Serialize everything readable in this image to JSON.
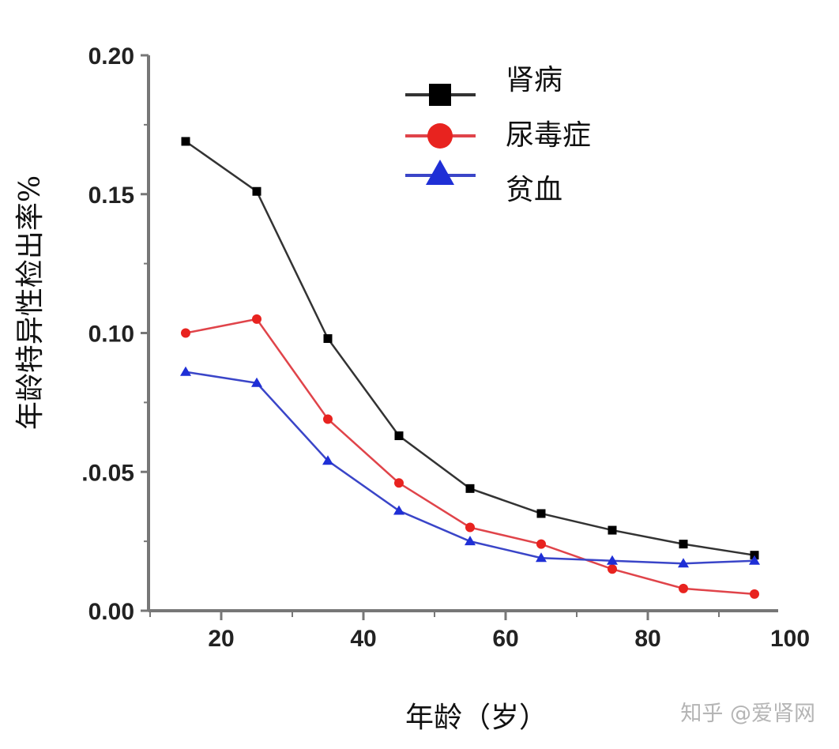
{
  "chart_data": {
    "type": "line",
    "title": "",
    "xlabel": "年龄（岁）",
    "ylabel": "年龄特异性检出率%",
    "xlim": [
      10,
      100
    ],
    "ylim": [
      0.0,
      0.2
    ],
    "x_ticks": [
      20,
      40,
      60,
      80,
      100
    ],
    "x_tick_labels": [
      "20",
      "40",
      "60",
      "80",
      "100"
    ],
    "y_ticks": [
      0.0,
      0.05,
      0.1,
      0.15,
      0.2
    ],
    "y_tick_labels": [
      "0.00",
      ".0.05",
      "0.10",
      "0.15",
      "0.20"
    ],
    "grid": false,
    "legend_position": "upper right (inside)",
    "x": [
      15,
      25,
      35,
      45,
      55,
      65,
      75,
      85,
      95
    ],
    "series": [
      {
        "name": "肾病",
        "color": "#000000",
        "line_color": "#333333",
        "marker": "square",
        "values": [
          0.169,
          0.151,
          0.098,
          0.063,
          0.044,
          0.035,
          0.029,
          0.024,
          0.02
        ]
      },
      {
        "name": "尿毒症",
        "color": "#e8231f",
        "line_color": "#e0444a",
        "marker": "circle",
        "values": [
          0.1,
          0.105,
          0.069,
          0.046,
          0.03,
          0.024,
          0.015,
          0.008,
          0.006
        ]
      },
      {
        "name": "贫血",
        "color": "#1f2fd6",
        "line_color": "#3a45c8",
        "marker": "triangle",
        "values": [
          0.086,
          0.082,
          0.054,
          0.036,
          0.025,
          0.019,
          0.018,
          0.017,
          0.018
        ]
      }
    ]
  },
  "watermark": "知乎 @爱肾网"
}
